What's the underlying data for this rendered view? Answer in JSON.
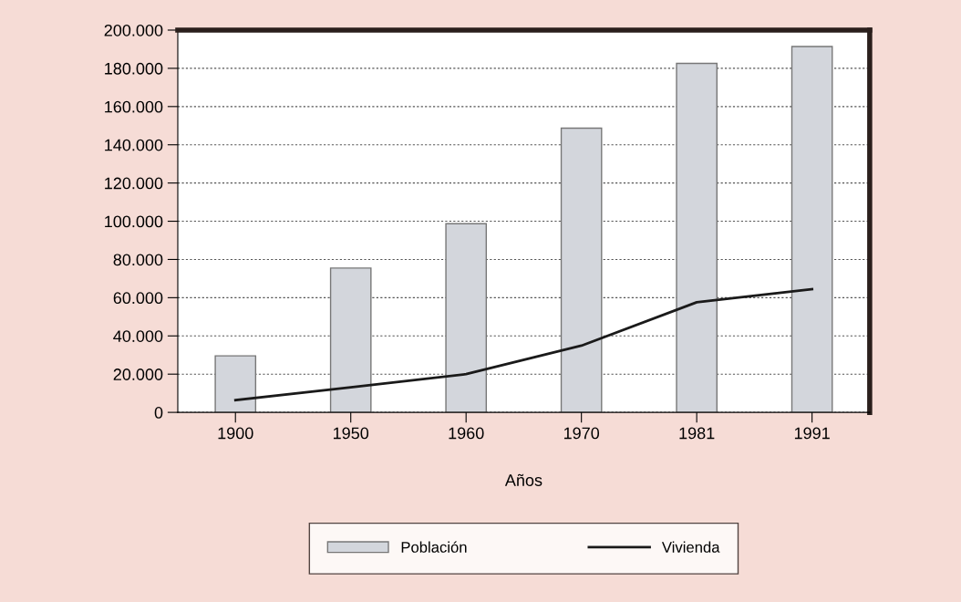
{
  "chart_data": {
    "type": "bar",
    "xlabel": "Años",
    "categories": [
      "1900",
      "1950",
      "1960",
      "1970",
      "1981",
      "1991"
    ],
    "series": [
      {
        "name": "Población",
        "color": "#d3d6dc",
        "values": [
          29600,
          75500,
          98700,
          148700,
          182600,
          191400
        ]
      },
      {
        "name": "Vivienda",
        "type": "line",
        "color": "#1a1a1a",
        "values": [
          6400,
          13100,
          20000,
          34900,
          57600,
          64500
        ]
      }
    ],
    "ylim": [
      0,
      200000
    ],
    "yticks": [
      {
        "value": 0,
        "label": "0"
      },
      {
        "value": 20000,
        "label": "20.000"
      },
      {
        "value": 40000,
        "label": "40.000"
      },
      {
        "value": 60000,
        "label": "60.000"
      },
      {
        "value": 80000,
        "label": "80.000"
      },
      {
        "value": 100000,
        "label": "100.000"
      },
      {
        "value": 120000,
        "label": "120.000"
      },
      {
        "value": 140000,
        "label": "140.000"
      },
      {
        "value": 160000,
        "label": "160.000"
      },
      {
        "value": 180000,
        "label": "180.000"
      },
      {
        "value": 200000,
        "label": "200.000"
      }
    ],
    "grid": "y",
    "legend": "bottom",
    "marker": "none",
    "line_style": "solid"
  }
}
